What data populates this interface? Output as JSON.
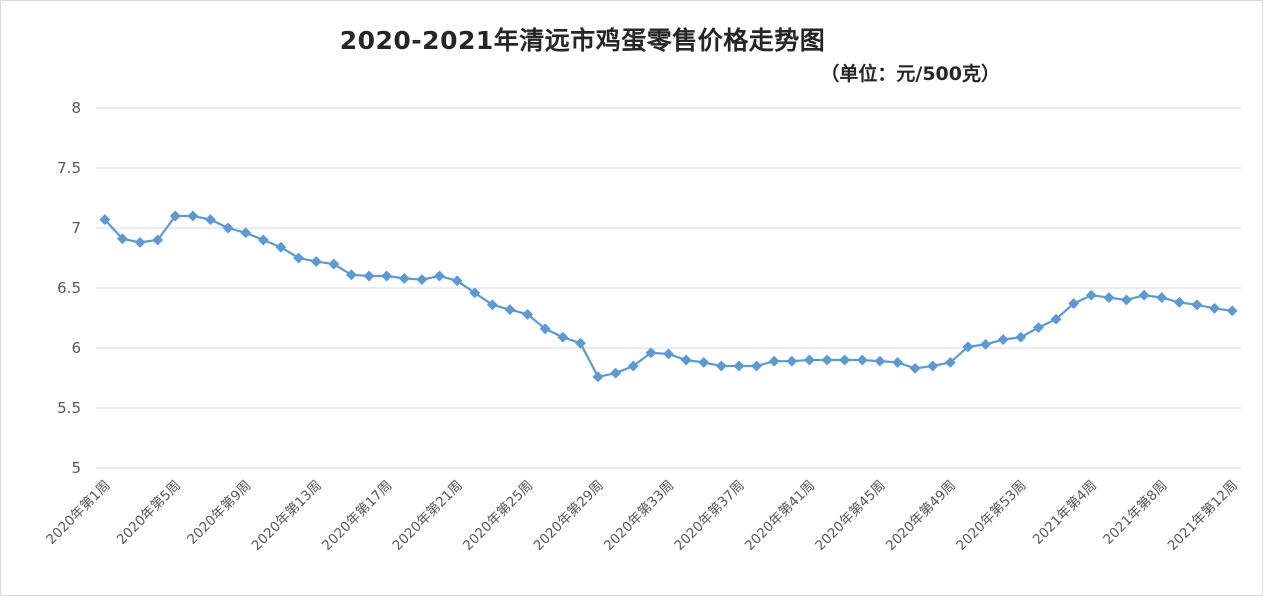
{
  "chart_data": {
    "type": "line",
    "title": "2020-2021年清远市鸡蛋零售价格走势图",
    "unit": "（单位：元/500克）",
    "ylim": [
      5,
      8
    ],
    "yticks": [
      5,
      5.5,
      6,
      6.5,
      7,
      7.5,
      8
    ],
    "grid": true,
    "legend": "none",
    "colors": {
      "series": "#5b9bd5",
      "grid": "#d9d9d9"
    },
    "x_tick_labels": [
      "2020年第1周",
      "2020年第5周",
      "2020年第9周",
      "2020年第13周",
      "2020年第17周",
      "2020年第21周",
      "2020年第25周",
      "2020年第29周",
      "2020年第33周",
      "2020年第37周",
      "2020年第41周",
      "2020年第45周",
      "2020年第49周",
      "2020年第53周",
      "2021年第4周",
      "2021年第8周",
      "2021年第12周"
    ],
    "x_tick_every": 4,
    "series": [
      {
        "name": "",
        "values": [
          7.07,
          6.91,
          6.88,
          6.9,
          7.1,
          7.1,
          7.07,
          7.0,
          6.96,
          6.9,
          6.84,
          6.75,
          6.72,
          6.7,
          6.61,
          6.6,
          6.6,
          6.58,
          6.57,
          6.6,
          6.56,
          6.46,
          6.36,
          6.32,
          6.28,
          6.16,
          6.09,
          6.04,
          5.76,
          5.79,
          5.85,
          5.96,
          5.95,
          5.9,
          5.88,
          5.85,
          5.85,
          5.85,
          5.89,
          5.89,
          5.9,
          5.9,
          5.9,
          5.9,
          5.89,
          5.88,
          5.83,
          5.85,
          5.88,
          6.01,
          6.03,
          6.07,
          6.09,
          6.17,
          6.24,
          6.37,
          6.44,
          6.42,
          6.4,
          6.44,
          6.42,
          6.38,
          6.36,
          6.33,
          6.31
        ]
      }
    ]
  }
}
